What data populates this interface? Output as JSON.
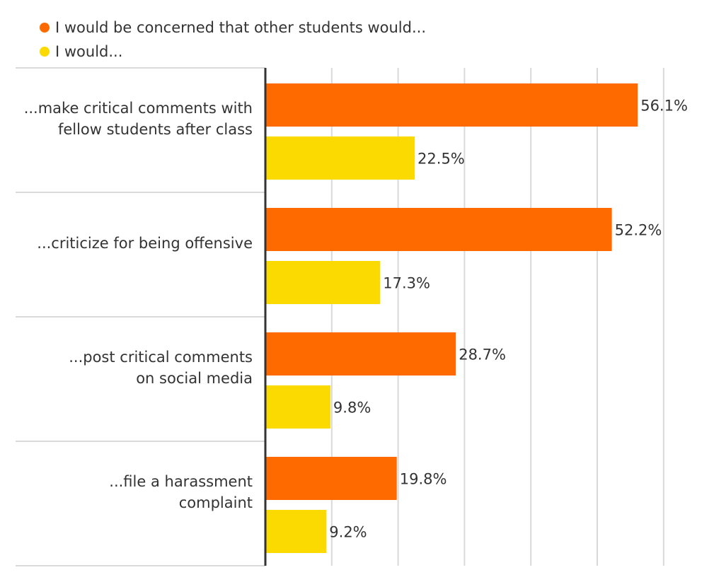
{
  "legend": [
    {
      "label": "I would be concerned that other students would...",
      "color": "#FF6A00"
    },
    {
      "label": "I would...",
      "color": "#FADA00"
    }
  ],
  "chart_data": {
    "type": "bar",
    "orientation": "horizontal",
    "categories": [
      [
        "...make critical comments with",
        "fellow students after class"
      ],
      [
        "...criticize for being offensive"
      ],
      [
        "...post critical comments",
        "on social media"
      ],
      [
        "...file a harassment",
        "complaint"
      ]
    ],
    "series": [
      {
        "name": "I would be concerned that other students would...",
        "color": "#FF6A00",
        "values": [
          56.1,
          52.2,
          28.7,
          19.8
        ]
      },
      {
        "name": "I would...",
        "color": "#FADA00",
        "values": [
          22.5,
          17.3,
          9.8,
          9.2
        ]
      }
    ],
    "value_suffix": "%",
    "xlim": [
      0,
      60
    ],
    "grid": true,
    "legend_position": "top-left"
  }
}
